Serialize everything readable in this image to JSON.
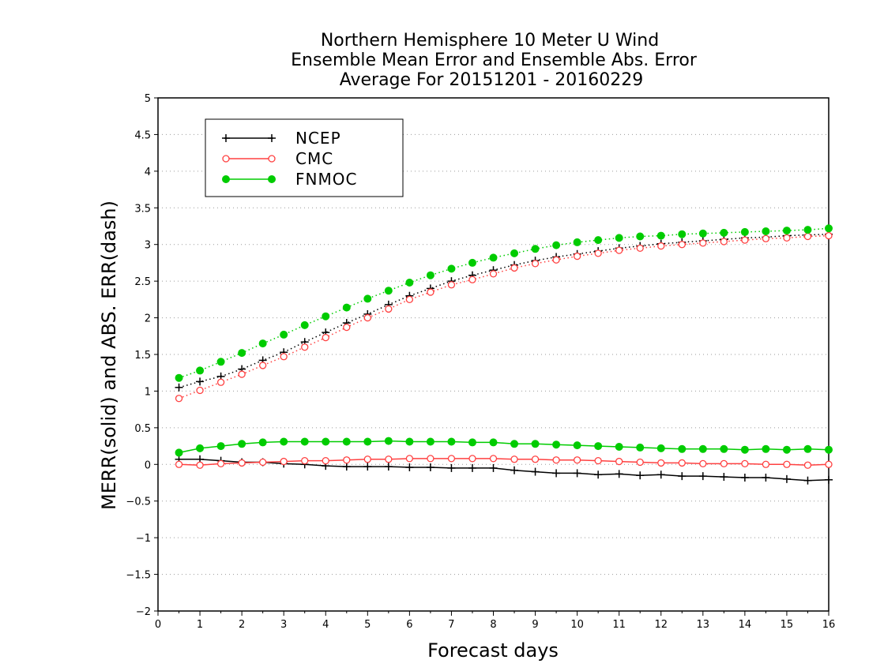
{
  "chart_data": {
    "type": "line",
    "title": [
      "Northern Hemisphere 10 Meter U Wind",
      "Ensemble Mean Error and Ensemble Abs. Error",
      "Average For 20151201 - 20160229"
    ],
    "xlabel": "Forecast days",
    "ylabel": "MERR(solid) and ABS. ERR(dash)",
    "xlim": [
      0,
      16
    ],
    "ylim": [
      -2,
      5
    ],
    "x_ticks": [
      "0",
      "1",
      "2",
      "3",
      "4",
      "5",
      "6",
      "7",
      "8",
      "9",
      "10",
      "11",
      "12",
      "13",
      "14",
      "15",
      "16"
    ],
    "y_ticks": [
      "5",
      "4.5",
      "4",
      "3.5",
      "3",
      "2.5",
      "2",
      "1.5",
      "1",
      "0.5",
      "0",
      "−0.5",
      "−1",
      "−1.5",
      "−2"
    ],
    "grid": true,
    "legend_position": "top-left",
    "x": [
      0.5,
      1,
      1.5,
      2,
      2.5,
      3,
      3.5,
      4,
      4.5,
      5,
      5.5,
      6,
      6.5,
      7,
      7.5,
      8,
      8.5,
      9,
      9.5,
      10,
      10.5,
      11,
      11.5,
      12,
      12.5,
      13,
      13.5,
      14,
      14.5,
      15,
      15.5,
      16
    ],
    "series": [
      {
        "name": "NCEP",
        "color": "#000000",
        "marker": "plus",
        "style": "solid",
        "metric": "mean error",
        "values": [
          0.07,
          0.07,
          0.05,
          0.03,
          0.03,
          0.01,
          0.0,
          -0.02,
          -0.03,
          -0.03,
          -0.03,
          -0.04,
          -0.04,
          -0.05,
          -0.05,
          -0.05,
          -0.08,
          -0.1,
          -0.12,
          -0.12,
          -0.14,
          -0.13,
          -0.15,
          -0.14,
          -0.16,
          -0.16,
          -0.17,
          -0.18,
          -0.18,
          -0.2,
          -0.22,
          -0.21
        ]
      },
      {
        "name": "CMC",
        "color": "#ff4040",
        "marker": "open-circle",
        "style": "solid",
        "metric": "mean error",
        "values": [
          0.0,
          -0.01,
          0.01,
          0.02,
          0.03,
          0.04,
          0.05,
          0.05,
          0.06,
          0.07,
          0.07,
          0.08,
          0.08,
          0.08,
          0.08,
          0.08,
          0.07,
          0.07,
          0.06,
          0.06,
          0.05,
          0.04,
          0.03,
          0.02,
          0.02,
          0.01,
          0.01,
          0.01,
          0.0,
          0.0,
          -0.01,
          0.0
        ]
      },
      {
        "name": "FNMOC",
        "color": "#00cc00",
        "marker": "filled-circle",
        "style": "solid",
        "metric": "mean error",
        "values": [
          0.16,
          0.22,
          0.25,
          0.28,
          0.3,
          0.31,
          0.31,
          0.31,
          0.31,
          0.31,
          0.32,
          0.31,
          0.31,
          0.31,
          0.3,
          0.3,
          0.28,
          0.28,
          0.27,
          0.26,
          0.25,
          0.24,
          0.23,
          0.22,
          0.21,
          0.21,
          0.21,
          0.2,
          0.21,
          0.2,
          0.21,
          0.2
        ]
      },
      {
        "name": "NCEP",
        "color": "#000000",
        "marker": "plus",
        "style": "dotted",
        "metric": "abs error",
        "values": [
          1.05,
          1.13,
          1.2,
          1.3,
          1.42,
          1.53,
          1.67,
          1.8,
          1.93,
          2.05,
          2.18,
          2.3,
          2.4,
          2.5,
          2.58,
          2.65,
          2.72,
          2.78,
          2.83,
          2.87,
          2.91,
          2.95,
          2.98,
          3.01,
          3.03,
          3.05,
          3.07,
          3.09,
          3.1,
          3.12,
          3.13,
          3.14
        ]
      },
      {
        "name": "CMC",
        "color": "#ff4040",
        "marker": "open-circle",
        "style": "dotted",
        "metric": "abs error",
        "values": [
          0.9,
          1.01,
          1.12,
          1.23,
          1.35,
          1.47,
          1.6,
          1.73,
          1.87,
          2.0,
          2.12,
          2.25,
          2.35,
          2.45,
          2.52,
          2.6,
          2.68,
          2.74,
          2.79,
          2.84,
          2.88,
          2.92,
          2.95,
          2.98,
          3.0,
          3.02,
          3.04,
          3.06,
          3.08,
          3.09,
          3.11,
          3.12
        ]
      },
      {
        "name": "FNMOC",
        "color": "#00cc00",
        "marker": "filled-circle",
        "style": "dotted",
        "metric": "abs error",
        "values": [
          1.18,
          1.28,
          1.4,
          1.52,
          1.65,
          1.77,
          1.9,
          2.02,
          2.14,
          2.26,
          2.37,
          2.48,
          2.58,
          2.67,
          2.75,
          2.82,
          2.88,
          2.94,
          2.99,
          3.03,
          3.06,
          3.09,
          3.11,
          3.12,
          3.14,
          3.15,
          3.16,
          3.17,
          3.18,
          3.19,
          3.2,
          3.22
        ]
      }
    ],
    "legend": [
      {
        "label": "NCEP",
        "color": "#000000",
        "marker": "plus"
      },
      {
        "label": "CMC",
        "color": "#ff4040",
        "marker": "open-circle"
      },
      {
        "label": "FNMOC",
        "color": "#00cc00",
        "marker": "filled-circle"
      }
    ]
  }
}
